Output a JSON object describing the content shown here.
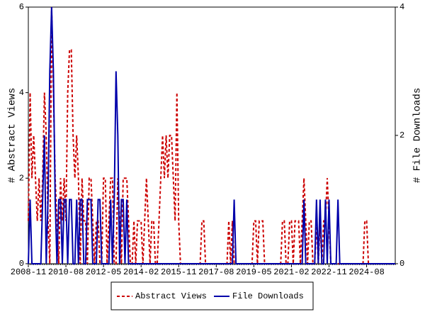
{
  "chart_data": {
    "type": "line",
    "y_label": "# Abstract Views",
    "y2_label": "# File Downloads",
    "x": [
      "2008-11",
      "2008-12",
      "2009-01",
      "2009-02",
      "2009-03",
      "2009-04",
      "2009-05",
      "2009-06",
      "2009-07",
      "2009-08",
      "2009-09",
      "2009-10",
      "2009-11",
      "2009-12",
      "2010-01",
      "2010-02",
      "2010-03",
      "2010-04",
      "2010-05",
      "2010-06",
      "2010-07",
      "2010-08",
      "2010-09",
      "2010-10",
      "2010-11",
      "2010-12",
      "2011-01",
      "2011-02",
      "2011-03",
      "2011-04",
      "2011-05",
      "2011-06",
      "2011-07",
      "2011-08",
      "2011-09",
      "2011-10",
      "2011-11",
      "2011-12",
      "2012-01",
      "2012-02",
      "2012-03",
      "2012-04",
      "2012-05",
      "2012-06",
      "2012-07",
      "2012-08",
      "2012-09",
      "2012-10",
      "2012-11",
      "2012-12",
      "2013-01",
      "2013-02",
      "2013-03",
      "2013-04",
      "2013-05",
      "2013-06",
      "2013-07",
      "2013-08",
      "2013-09",
      "2013-10",
      "2013-11",
      "2013-12",
      "2014-01",
      "2014-02",
      "2014-03",
      "2014-04",
      "2014-05",
      "2014-06",
      "2014-07",
      "2014-08",
      "2014-09",
      "2014-10",
      "2014-11",
      "2014-12",
      "2015-01",
      "2015-02",
      "2015-03",
      "2015-04",
      "2015-05",
      "2015-06",
      "2015-07",
      "2015-08",
      "2015-09",
      "2015-10",
      "2015-11",
      "2015-12",
      "2016-01",
      "2016-02",
      "2016-03",
      "2016-04",
      "2016-05",
      "2016-06",
      "2016-07",
      "2016-08",
      "2016-09",
      "2016-10",
      "2016-11",
      "2016-12",
      "2017-01",
      "2017-02",
      "2017-03",
      "2017-04",
      "2017-05",
      "2017-06",
      "2017-07",
      "2017-08",
      "2017-09",
      "2017-10",
      "2017-11",
      "2017-12",
      "2018-01",
      "2018-02",
      "2018-03",
      "2018-04",
      "2018-05",
      "2018-06",
      "2018-07",
      "2018-08",
      "2018-09",
      "2018-10",
      "2018-11",
      "2018-12",
      "2019-01",
      "2019-02",
      "2019-03",
      "2019-04",
      "2019-05",
      "2019-06",
      "2019-07",
      "2019-08",
      "2019-09",
      "2019-10",
      "2019-11",
      "2019-12",
      "2020-01",
      "2020-02",
      "2020-03",
      "2020-04",
      "2020-05",
      "2020-06",
      "2020-07",
      "2020-08",
      "2020-09",
      "2020-10",
      "2020-11",
      "2020-12",
      "2021-01",
      "2021-02",
      "2021-03",
      "2021-04",
      "2021-05",
      "2021-06",
      "2021-07",
      "2021-08",
      "2021-09",
      "2021-10",
      "2021-11",
      "2021-12",
      "2022-01",
      "2022-02",
      "2022-03",
      "2022-04",
      "2022-05",
      "2022-06",
      "2022-07",
      "2022-08",
      "2022-09",
      "2022-10",
      "2022-11",
      "2022-12",
      "2023-01",
      "2023-02",
      "2023-03",
      "2023-04",
      "2023-05",
      "2023-06",
      "2023-07",
      "2023-08",
      "2023-09",
      "2023-10",
      "2023-11",
      "2023-12",
      "2024-01",
      "2024-02",
      "2024-03",
      "2024-04",
      "2024-05",
      "2024-06",
      "2024-07",
      "2024-08",
      "2024-09",
      "2024-10",
      "2024-11",
      "2024-12",
      "2025-01",
      "2025-02",
      "2025-03",
      "2025-04",
      "2025-05",
      "2025-06",
      "2025-07",
      "2025-08",
      "2025-09",
      "2025-10",
      "2025-11",
      "2025-12"
    ],
    "series": [
      {
        "name": "Abstract Views",
        "color": "#cc0000",
        "dash": true,
        "values": [
          1,
          4,
          2,
          3,
          2,
          1,
          2,
          1,
          2,
          4,
          3,
          1,
          0,
          6,
          4,
          2,
          1,
          0,
          2,
          1,
          2,
          1,
          4,
          5,
          5,
          3,
          2,
          3,
          2,
          0,
          2,
          1,
          1,
          0,
          2,
          2,
          1,
          0,
          1,
          1,
          0,
          0,
          2,
          2,
          0,
          1,
          2,
          2,
          0,
          0,
          2,
          1,
          0,
          2,
          2,
          2,
          1,
          0,
          0,
          1,
          0,
          1,
          1,
          1,
          0,
          1,
          2,
          1,
          0,
          1,
          1,
          0,
          0,
          1,
          2,
          3,
          2,
          3,
          2,
          3,
          3,
          2,
          1,
          4,
          1,
          0,
          0,
          0,
          0,
          0,
          0,
          0,
          0,
          0,
          0,
          0,
          0,
          1,
          1,
          0,
          0,
          0,
          0,
          0,
          0,
          0,
          0,
          0,
          0,
          0,
          0,
          0,
          1,
          0,
          1,
          0,
          0,
          0,
          0,
          0,
          0,
          0,
          0,
          0,
          0,
          0,
          1,
          1,
          0,
          1,
          1,
          1,
          0,
          0,
          0,
          0,
          0,
          0,
          0,
          0,
          0,
          0,
          1,
          1,
          0,
          0,
          1,
          1,
          0,
          1,
          1,
          1,
          0,
          1,
          2,
          1,
          0,
          1,
          1,
          0,
          0,
          1,
          0,
          1,
          0,
          1,
          1,
          2,
          1,
          0,
          0,
          0,
          0,
          0,
          0,
          0,
          0,
          0,
          0,
          0,
          0,
          0,
          0,
          0,
          0,
          0,
          0,
          0,
          1,
          1,
          0,
          0,
          0,
          0,
          0,
          0,
          0,
          0,
          0,
          0,
          0,
          0,
          0,
          0,
          0,
          0
        ]
      },
      {
        "name": "File Downloads",
        "color": "#0000aa",
        "axis": "y2",
        "values": [
          0,
          1,
          0,
          0,
          0,
          0,
          0,
          0,
          1,
          2,
          0,
          1,
          3,
          4,
          3,
          1,
          0,
          1,
          1,
          0,
          1,
          1,
          0,
          1,
          1,
          0,
          0,
          1,
          0,
          1,
          1,
          0,
          0,
          1,
          1,
          1,
          0,
          0,
          0,
          1,
          1,
          0,
          0,
          0,
          0,
          0,
          1,
          0,
          1,
          3,
          2,
          0,
          1,
          1,
          0,
          1,
          0,
          0,
          0,
          0,
          0,
          0,
          0,
          0,
          0,
          0,
          0,
          0,
          0,
          0,
          0,
          0,
          0,
          0,
          0,
          0,
          0,
          0,
          0,
          0,
          0,
          0,
          0,
          0,
          0,
          0,
          0,
          0,
          0,
          0,
          0,
          0,
          0,
          0,
          0,
          0,
          0,
          0,
          0,
          0,
          0,
          0,
          0,
          0,
          0,
          0,
          0,
          0,
          0,
          0,
          0,
          0,
          0,
          0,
          0,
          1,
          0,
          0,
          0,
          0,
          0,
          0,
          0,
          0,
          0,
          0,
          0,
          0,
          0,
          0,
          0,
          0,
          0,
          0,
          0,
          0,
          0,
          0,
          0,
          0,
          0,
          0,
          0,
          0,
          0,
          0,
          0,
          0,
          0,
          0,
          0,
          0,
          0,
          0,
          1,
          0,
          0,
          0,
          0,
          0,
          0,
          1,
          0,
          1,
          0,
          0,
          1,
          0,
          1,
          0,
          0,
          0,
          0,
          1,
          0,
          0,
          0,
          0,
          0,
          0,
          0,
          0,
          0,
          0,
          0,
          0,
          0,
          0,
          0,
          0,
          0,
          0,
          0,
          0,
          0,
          0,
          0,
          0,
          0,
          0,
          0,
          0,
          0,
          0,
          0,
          0
        ]
      }
    ],
    "xlim": [
      "2008-11",
      "2025-12"
    ],
    "xticks": [
      "2008-11",
      "2010-08",
      "2012-05",
      "2014-02",
      "2015-11",
      "2017-08",
      "2019-05",
      "2021-02",
      "2022-11",
      "2024-08"
    ],
    "ylim": [
      0,
      6
    ],
    "yticks": [
      0,
      2,
      4,
      6
    ],
    "y2lim": [
      0,
      4
    ],
    "y2ticks": [
      0,
      2,
      4
    ],
    "legend": "bottom"
  }
}
